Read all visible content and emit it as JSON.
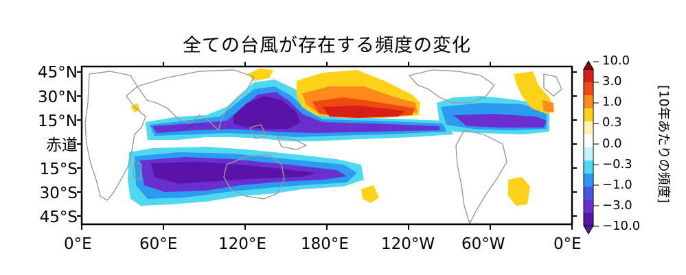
{
  "title": "全ての台風が存在する頻度の変化",
  "y_axis_labels": [
    "45°N",
    "30°N",
    "15°N",
    "赤道",
    "15°S",
    "30°S",
    "45°S"
  ],
  "x_axis_labels": [
    "0°E",
    "60°E",
    "120°E",
    "180°E",
    "120°W",
    "60°W",
    "0°E"
  ],
  "colorbar": {
    "title": "[10年あたりの頻度]",
    "ticks": [
      "10.0",
      "3.0",
      "1.0",
      "0.3",
      "0.0",
      "−0.3",
      "−1.0",
      "−3.0",
      "−10.0"
    ],
    "colors": [
      "#8b0000",
      "#d91e18",
      "#ee4a10",
      "#ff8a1c",
      "#ffd21a",
      "#fff5b0",
      "#ffffff",
      "#c4f4fb",
      "#4fd8f0",
      "#2a9bf0",
      "#4a55e0",
      "#6a2fcf",
      "#5a13a8"
    ]
  },
  "map_regions": [
    {
      "label": "North Pacific increase",
      "tone": "increase"
    },
    {
      "label": "Western Pacific decrease",
      "tone": "decrease"
    },
    {
      "label": "Southern Hemisphere decrease",
      "tone": "decrease"
    },
    {
      "label": "North Atlantic decrease",
      "tone": "decrease"
    }
  ]
}
